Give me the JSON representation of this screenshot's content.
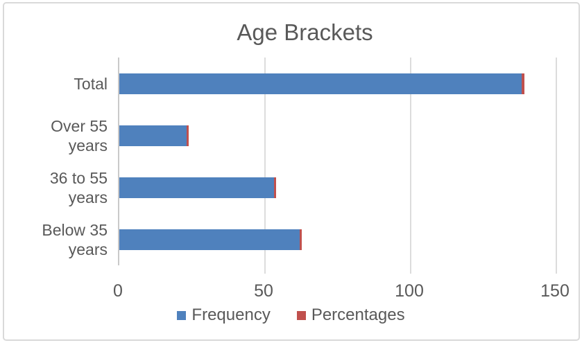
{
  "chart": {
    "title": "Age Brackets"
  },
  "colors": {
    "frequency_blue": "#4F81BD",
    "percentages_red": "#C0504D",
    "text_gray": "#595959",
    "gridline_gray": "#DCDCDC",
    "axis_line_gray": "#C9C9C9",
    "frame_border_gray": "#D9D9D9",
    "background": "#FFFFFF"
  },
  "chart_data": {
    "type": "bar",
    "orientation": "horizontal",
    "stacked": true,
    "title": "Age Brackets",
    "categories": [
      "Total",
      "Over 55 years",
      "36 to 55 years",
      "Below 35 years"
    ],
    "categories_order": "top-to-bottom",
    "series": [
      {
        "name": "Frequency",
        "color": "#4F81BD",
        "values": [
          138,
          23,
          53,
          62
        ]
      },
      {
        "name": "Percentages",
        "color": "#C0504D",
        "values": [
          1.0,
          0.17,
          0.38,
          0.45
        ]
      }
    ],
    "xlabel": "",
    "ylabel": "",
    "xlim": [
      0,
      150
    ],
    "xticks": [
      0,
      50,
      100,
      150
    ],
    "gridlines": true,
    "legend_position": "bottom"
  }
}
